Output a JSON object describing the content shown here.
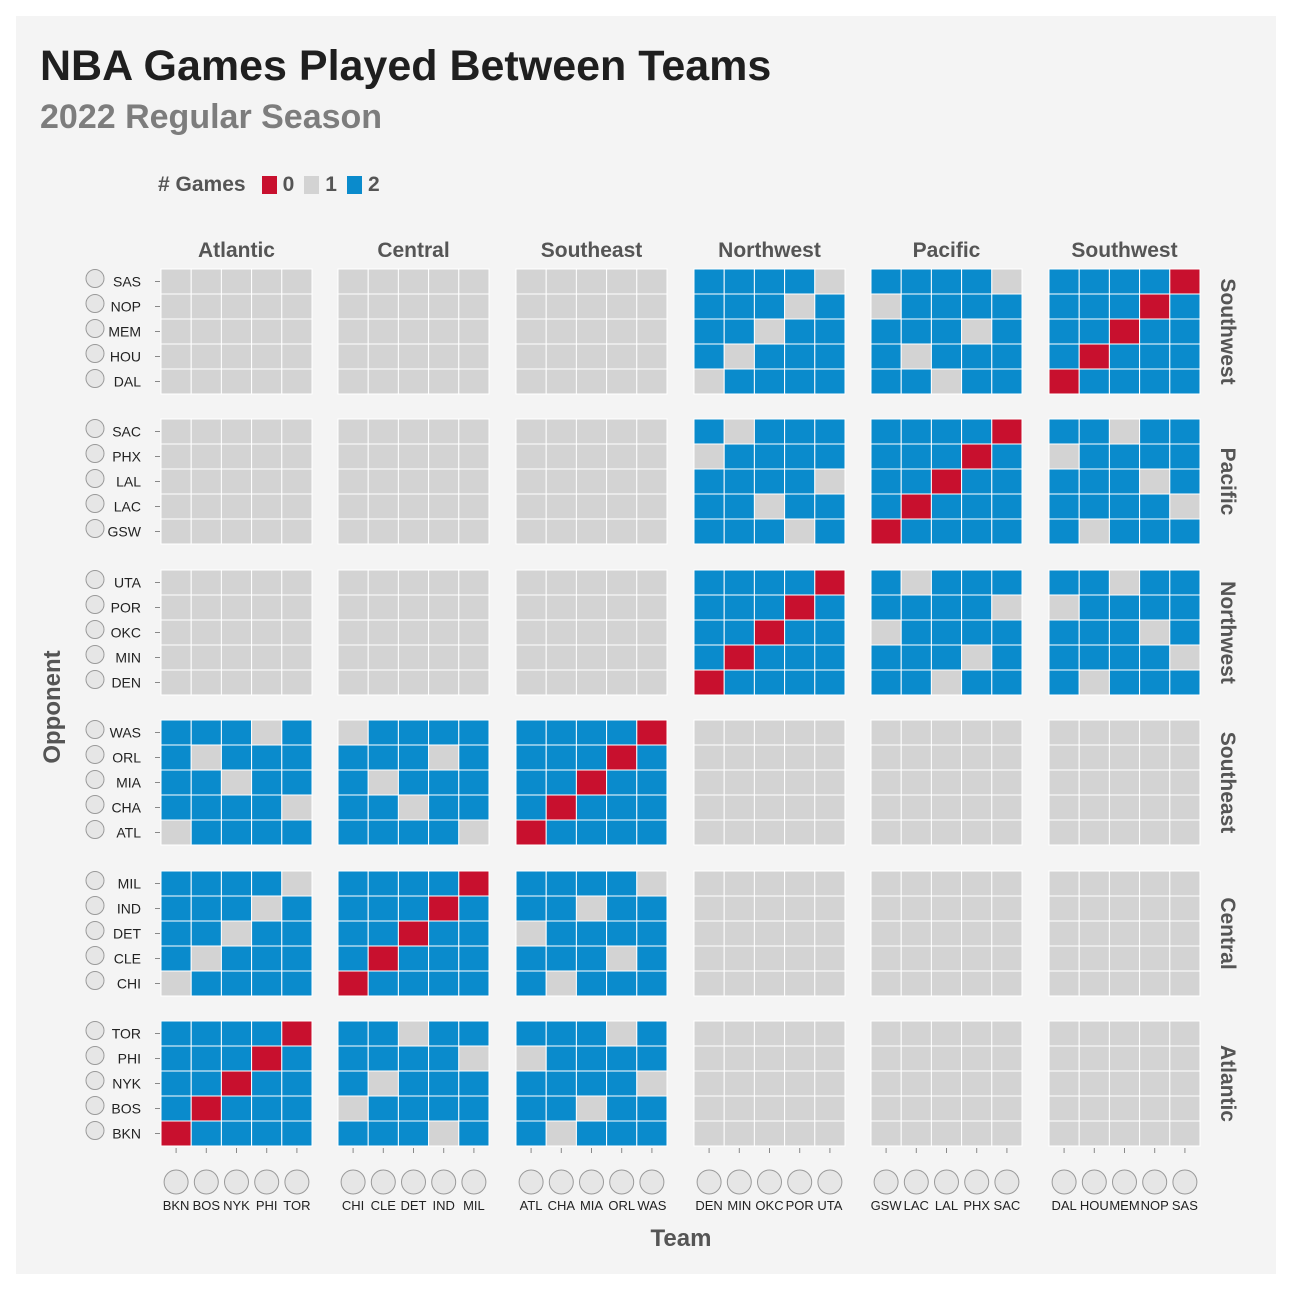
{
  "title": "NBA Games Played Between Teams",
  "subtitle": "2022 Regular Season",
  "legend": {
    "title": "# Games",
    "items": [
      {
        "label": "0",
        "value": 0,
        "color": "#c8102e"
      },
      {
        "label": "1",
        "value": 1,
        "color": "#d3d3d3"
      },
      {
        "label": "2",
        "value": 2,
        "color": "#0a8bcc"
      }
    ]
  },
  "chart_data": {
    "type": "heatmap",
    "xlabel": "Team",
    "ylabel": "Opponent",
    "legend_position": "top-left",
    "colors": {
      "0": "#c8102e",
      "1": "#d3d3d3",
      "2": "#0a8bcc",
      "border": "#ffffff"
    },
    "column_divisions": [
      {
        "name": "Atlantic",
        "teams": [
          "BKN",
          "BOS",
          "NYK",
          "PHI",
          "TOR"
        ]
      },
      {
        "name": "Central",
        "teams": [
          "CHI",
          "CLE",
          "DET",
          "IND",
          "MIL"
        ]
      },
      {
        "name": "Southeast",
        "teams": [
          "ATL",
          "CHA",
          "MIA",
          "ORL",
          "WAS"
        ]
      },
      {
        "name": "Northwest",
        "teams": [
          "DEN",
          "MIN",
          "OKC",
          "POR",
          "UTA"
        ]
      },
      {
        "name": "Pacific",
        "teams": [
          "GSW",
          "LAC",
          "LAL",
          "PHX",
          "SAC"
        ]
      },
      {
        "name": "Southwest",
        "teams": [
          "DAL",
          "HOU",
          "MEM",
          "NOP",
          "SAS"
        ]
      }
    ],
    "row_divisions": [
      {
        "name": "Southwest",
        "teams": [
          "SAS",
          "NOP",
          "MEM",
          "HOU",
          "DAL"
        ]
      },
      {
        "name": "Pacific",
        "teams": [
          "SAC",
          "PHX",
          "LAL",
          "LAC",
          "GSW"
        ]
      },
      {
        "name": "Northwest",
        "teams": [
          "UTA",
          "POR",
          "OKC",
          "MIN",
          "DEN"
        ]
      },
      {
        "name": "Southeast",
        "teams": [
          "WAS",
          "ORL",
          "MIA",
          "CHA",
          "ATL"
        ]
      },
      {
        "name": "Central",
        "teams": [
          "MIL",
          "IND",
          "DET",
          "CLE",
          "CHI"
        ]
      },
      {
        "name": "Atlantic",
        "teams": [
          "TOR",
          "PHI",
          "NYK",
          "BOS",
          "BKN"
        ]
      }
    ],
    "cross_conference_value": 1,
    "blocks": {
      "Southwest|Northwest": [
        [
          2,
          2,
          2,
          2,
          1
        ],
        [
          2,
          2,
          2,
          1,
          2
        ],
        [
          2,
          2,
          1,
          2,
          2
        ],
        [
          2,
          1,
          2,
          2,
          2
        ],
        [
          1,
          2,
          2,
          2,
          2
        ]
      ],
      "Southwest|Pacific": [
        [
          2,
          2,
          2,
          2,
          1
        ],
        [
          1,
          2,
          2,
          2,
          2
        ],
        [
          2,
          2,
          2,
          1,
          2
        ],
        [
          2,
          1,
          2,
          2,
          2
        ],
        [
          2,
          2,
          1,
          2,
          2
        ]
      ],
      "Southwest|Southwest": [
        [
          2,
          2,
          2,
          2,
          0
        ],
        [
          2,
          2,
          2,
          0,
          2
        ],
        [
          2,
          2,
          0,
          2,
          2
        ],
        [
          2,
          0,
          2,
          2,
          2
        ],
        [
          0,
          2,
          2,
          2,
          2
        ]
      ],
      "Pacific|Northwest": [
        [
          2,
          1,
          2,
          2,
          2
        ],
        [
          1,
          2,
          2,
          2,
          2
        ],
        [
          2,
          2,
          2,
          2,
          1
        ],
        [
          2,
          2,
          1,
          2,
          2
        ],
        [
          2,
          2,
          2,
          1,
          2
        ]
      ],
      "Pacific|Pacific": [
        [
          2,
          2,
          2,
          2,
          0
        ],
        [
          2,
          2,
          2,
          0,
          2
        ],
        [
          2,
          2,
          0,
          2,
          2
        ],
        [
          2,
          0,
          2,
          2,
          2
        ],
        [
          0,
          2,
          2,
          2,
          2
        ]
      ],
      "Pacific|Southwest": [
        [
          2,
          2,
          1,
          2,
          2
        ],
        [
          1,
          2,
          2,
          2,
          2
        ],
        [
          2,
          2,
          2,
          1,
          2
        ],
        [
          2,
          2,
          2,
          2,
          1
        ],
        [
          2,
          1,
          2,
          2,
          2
        ]
      ],
      "Northwest|Northwest": [
        [
          2,
          2,
          2,
          2,
          0
        ],
        [
          2,
          2,
          2,
          0,
          2
        ],
        [
          2,
          2,
          0,
          2,
          2
        ],
        [
          2,
          0,
          2,
          2,
          2
        ],
        [
          0,
          2,
          2,
          2,
          2
        ]
      ],
      "Northwest|Pacific": [
        [
          2,
          1,
          2,
          2,
          2
        ],
        [
          2,
          2,
          2,
          2,
          1
        ],
        [
          1,
          2,
          2,
          2,
          2
        ],
        [
          2,
          2,
          2,
          1,
          2
        ],
        [
          2,
          2,
          1,
          2,
          2
        ]
      ],
      "Northwest|Southwest": [
        [
          2,
          2,
          1,
          2,
          2
        ],
        [
          1,
          2,
          2,
          2,
          2
        ],
        [
          2,
          2,
          2,
          1,
          2
        ],
        [
          2,
          2,
          2,
          2,
          1
        ],
        [
          2,
          1,
          2,
          2,
          2
        ]
      ],
      "Southeast|Atlantic": [
        [
          2,
          2,
          2,
          1,
          2
        ],
        [
          2,
          1,
          2,
          2,
          2
        ],
        [
          2,
          2,
          1,
          2,
          2
        ],
        [
          2,
          2,
          2,
          2,
          1
        ],
        [
          1,
          2,
          2,
          2,
          2
        ]
      ],
      "Southeast|Central": [
        [
          1,
          2,
          2,
          2,
          2
        ],
        [
          2,
          2,
          2,
          1,
          2
        ],
        [
          2,
          1,
          2,
          2,
          2
        ],
        [
          2,
          2,
          1,
          2,
          2
        ],
        [
          2,
          2,
          2,
          2,
          1
        ]
      ],
      "Southeast|Southeast": [
        [
          2,
          2,
          2,
          2,
          0
        ],
        [
          2,
          2,
          2,
          0,
          2
        ],
        [
          2,
          2,
          0,
          2,
          2
        ],
        [
          2,
          0,
          2,
          2,
          2
        ],
        [
          0,
          2,
          2,
          2,
          2
        ]
      ],
      "Central|Atlantic": [
        [
          2,
          2,
          2,
          2,
          1
        ],
        [
          2,
          2,
          2,
          1,
          2
        ],
        [
          2,
          2,
          1,
          2,
          2
        ],
        [
          2,
          1,
          2,
          2,
          2
        ],
        [
          1,
          2,
          2,
          2,
          2
        ]
      ],
      "Central|Central": [
        [
          2,
          2,
          2,
          2,
          0
        ],
        [
          2,
          2,
          2,
          0,
          2
        ],
        [
          2,
          2,
          0,
          2,
          2
        ],
        [
          2,
          0,
          2,
          2,
          2
        ],
        [
          0,
          2,
          2,
          2,
          2
        ]
      ],
      "Central|Southeast": [
        [
          2,
          2,
          2,
          2,
          1
        ],
        [
          2,
          2,
          1,
          2,
          2
        ],
        [
          1,
          2,
          2,
          2,
          2
        ],
        [
          2,
          2,
          2,
          1,
          2
        ],
        [
          2,
          1,
          2,
          2,
          2
        ]
      ],
      "Atlantic|Atlantic": [
        [
          2,
          2,
          2,
          2,
          0
        ],
        [
          2,
          2,
          2,
          0,
          2
        ],
        [
          2,
          2,
          0,
          2,
          2
        ],
        [
          2,
          0,
          2,
          2,
          2
        ],
        [
          0,
          2,
          2,
          2,
          2
        ]
      ],
      "Atlantic|Central": [
        [
          2,
          2,
          1,
          2,
          2
        ],
        [
          2,
          2,
          2,
          2,
          1
        ],
        [
          2,
          1,
          2,
          2,
          2
        ],
        [
          1,
          2,
          2,
          2,
          2
        ],
        [
          2,
          2,
          2,
          1,
          2
        ]
      ],
      "Atlantic|Southeast": [
        [
          2,
          2,
          2,
          1,
          2
        ],
        [
          1,
          2,
          2,
          2,
          2
        ],
        [
          2,
          2,
          2,
          2,
          1
        ],
        [
          2,
          2,
          1,
          2,
          2
        ],
        [
          2,
          1,
          2,
          2,
          2
        ]
      ]
    }
  }
}
